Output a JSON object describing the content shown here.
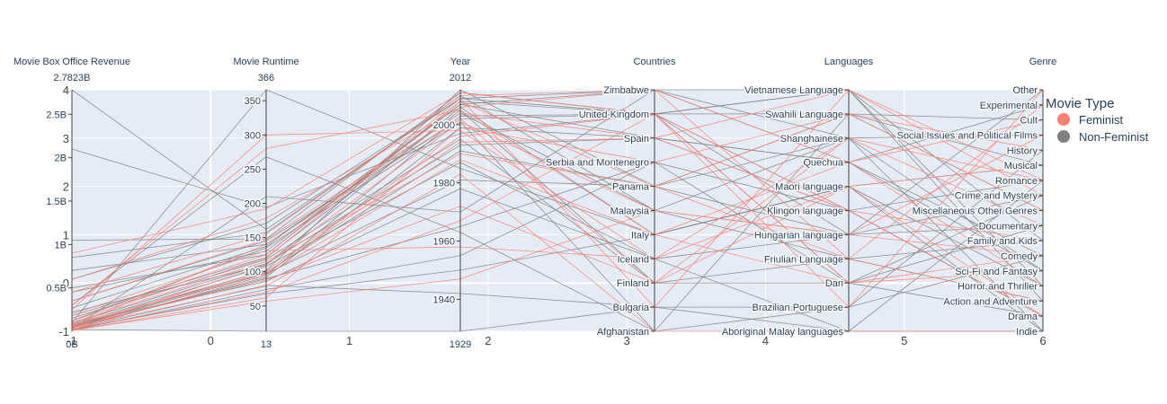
{
  "chart_data": {
    "type": "parcoords",
    "background_axis": {
      "x_ticks": [
        "-1",
        "0",
        "1",
        "2",
        "3",
        "4",
        "5",
        "6"
      ],
      "y_ticks": [
        "-1",
        "0",
        "1",
        "2",
        "3",
        "4"
      ],
      "xlim": [
        -1,
        6
      ],
      "ylim": [
        -1,
        4
      ]
    },
    "dimensions": [
      {
        "label": "Movie Box Office Revenue",
        "range_max": "2.7823B",
        "range_min": "0B",
        "ticks": [
          "0.5B",
          "1B",
          "1.5B",
          "2B",
          "2.5B"
        ],
        "tick_values": [
          0.5,
          1,
          1.5,
          2,
          2.5
        ],
        "min": 0,
        "max": 2.7823
      },
      {
        "label": "Movie Runtime",
        "range_max": "366",
        "range_min": "13",
        "ticks": [
          "50",
          "100",
          "150",
          "200",
          "250",
          "300",
          "350"
        ],
        "tick_values": [
          50,
          100,
          150,
          200,
          250,
          300,
          350
        ],
        "min": 13,
        "max": 366
      },
      {
        "label": "Year",
        "range_max": "2012",
        "range_min": "1929",
        "ticks": [
          "1940",
          "1960",
          "1980",
          "2000"
        ],
        "tick_values": [
          1940,
          1960,
          1980,
          2000
        ],
        "min": 1929,
        "max": 2012
      },
      {
        "label": "Countries",
        "range_max": "",
        "range_min": "",
        "categories": [
          "Afghanistan",
          "Bulgaria",
          "Finland",
          "Iceland",
          "Italy",
          "Malaysia",
          "Panama",
          "Serbia and Montenegro",
          "Spain",
          "United Kingdom",
          "Zimbabwe"
        ]
      },
      {
        "label": "Languages",
        "range_max": "",
        "range_min": "",
        "categories": [
          "Aboriginal Malay languages",
          "Brazilian Portuguese",
          "Dari",
          "Friulian Language",
          "Hungarian language",
          "Klingon language",
          "Maori language",
          "Quechua",
          "Shanghainese",
          "Swahili Language",
          "Vietnamese Language"
        ]
      },
      {
        "label": "Genre",
        "range_max": "",
        "range_min": "",
        "categories": [
          "Indie",
          "Drama",
          "Action and Adventure",
          "Horror and Thriller",
          "Sci-Fi and Fantasy",
          "Comedy",
          "Family and Kids",
          "Documentary",
          "Miscellaneous Other Genres",
          "Crime and Mystery",
          "Romance",
          "Musical",
          "History",
          "Social Issues and Political Films",
          "Cult",
          "Experimental",
          "Other"
        ]
      }
    ],
    "legend": {
      "title": "Movie Type",
      "items": [
        {
          "name": "Feminist",
          "color": "#fa8072"
        },
        {
          "name": "Non-Feminist",
          "color": "#808080"
        }
      ],
      "position": "right"
    },
    "colors": {
      "plot_bg": "#e5ecf6",
      "grid": "#ffffff",
      "axis": "#444444",
      "feminist": "#fa8072",
      "non_feminist": "#808080"
    },
    "sample_lines": {
      "feminist": [
        [
          0.08,
          101,
          1996,
          "United Kingdom",
          "Klingon language",
          "Drama"
        ],
        [
          0.35,
          147,
          2004,
          "Spain",
          "Vietnamese Language",
          "Romance"
        ],
        [
          0.02,
          95,
          1988,
          "Italy",
          "Dari",
          "Comedy"
        ],
        [
          0.12,
          120,
          2008,
          "Panama",
          "Friulian Language",
          "Experimental"
        ],
        [
          0.05,
          88,
          1972,
          "Finland",
          "Shanghainese",
          "Documentary"
        ],
        [
          0.6,
          178,
          2006,
          "Zimbabwe",
          "Quechua",
          "Cult"
        ],
        [
          0.01,
          62,
          1999,
          "Serbia and Montenegro",
          "Swahili Language",
          "History"
        ],
        [
          0.2,
          131,
          1958,
          "Iceland",
          "Maori language",
          "Musical"
        ],
        [
          0.03,
          110,
          2001,
          "Malaysia",
          "Hungarian language",
          "Social Issues and Political Films"
        ],
        [
          0.9,
          192,
          2011,
          "United Kingdom",
          "Brazilian Portuguese",
          "Other"
        ],
        [
          0.04,
          79,
          1983,
          "Afghanistan",
          "Aboriginal Malay languages",
          "Indie"
        ],
        [
          0.15,
          125,
          2009,
          "Bulgaria",
          "Vietnamese Language",
          "Crime and Mystery"
        ],
        [
          0.07,
          98,
          1994,
          "Spain",
          "Klingon language",
          "Family and Kids"
        ],
        [
          0.3,
          280,
          2005,
          "Italy",
          "Quechua",
          "Horror and Thriller"
        ],
        [
          0.02,
          70,
          1967,
          "United Kingdom",
          "Dari",
          "Sci-Fi and Fantasy"
        ],
        [
          0.45,
          155,
          2010,
          "Zimbabwe",
          "Friulian Language",
          "Action and Adventure"
        ],
        [
          0.1,
          115,
          1990,
          "Panama",
          "Swahili Language",
          "Miscellaneous Other Genres"
        ],
        [
          0.06,
          140,
          2002,
          "Finland",
          "Maori language",
          "Drama"
        ],
        [
          0.25,
          300,
          1998,
          "Iceland",
          "Shanghainese",
          "Romance"
        ],
        [
          0.01,
          57,
          1947,
          "Malaysia",
          "Hungarian language",
          "Comedy"
        ]
      ],
      "non_feminist": [
        [
          0.02,
          95,
          2003,
          "United Kingdom",
          "Dari",
          "Drama"
        ],
        [
          2.7823,
          162,
          2009,
          "Zimbabwe",
          "Vietnamese Language",
          "Action and Adventure"
        ],
        [
          2.1,
          194,
          1997,
          "United Kingdom",
          "Klingon language",
          "Romance"
        ],
        [
          0.45,
          130,
          2007,
          "Spain",
          "Quechua",
          "Comedy"
        ],
        [
          0.1,
          366,
          1985,
          "Italy",
          "Maori language",
          "Indie"
        ],
        [
          0.02,
          13,
          1929,
          "Bulgaria",
          "Aboriginal Malay languages",
          "Indie"
        ],
        [
          0.3,
          268,
          1963,
          "Afghanistan",
          "Brazilian Portuguese",
          "History"
        ],
        [
          0.05,
          102,
          2012,
          "Panama",
          "Swahili Language",
          "Cult"
        ],
        [
          0.7,
          140,
          2004,
          "Malaysia",
          "Shanghainese",
          "Sci-Fi and Fantasy"
        ],
        [
          0.08,
          86,
          1978,
          "Iceland",
          "Hungarian language",
          "Crime and Mystery"
        ],
        [
          0.15,
          118,
          1995,
          "Finland",
          "Friulian Language",
          "Family and Kids"
        ],
        [
          0.01,
          74,
          1955,
          "Serbia and Montenegro",
          "Dari",
          "Documentary"
        ],
        [
          1.05,
          148,
          2011,
          "United Kingdom",
          "Vietnamese Language",
          "Horror and Thriller"
        ],
        [
          0.04,
          92,
          1999,
          "Spain",
          "Klingon language",
          "Drama"
        ],
        [
          0.22,
          110,
          2006,
          "Italy",
          "Maori language",
          "Musical"
        ],
        [
          0.03,
          210,
          1970,
          "Zimbabwe",
          "Quechua",
          "Experimental"
        ],
        [
          0.5,
          125,
          2008,
          "United Kingdom",
          "Hungarian language",
          "Other"
        ],
        [
          0.06,
          99,
          1991,
          "Panama",
          "Shanghainese",
          "Social Issues and Political Films"
        ],
        [
          0.12,
          135,
          2001,
          "Afghanistan",
          "Swahili Language",
          "Miscellaneous Other Genres"
        ],
        [
          0.02,
          80,
          1942,
          "Bulgaria",
          "Brazilian Portuguese",
          "Comedy"
        ],
        [
          0.85,
          157,
          2010,
          "Malaysia",
          "Friulian Language",
          "Action and Adventure"
        ],
        [
          0.07,
          108,
          1987,
          "Iceland",
          "Aboriginal Malay languages",
          "Romance"
        ],
        [
          0.18,
          121,
          2005,
          "Finland",
          "Dari",
          "Crime and Mystery"
        ],
        [
          0.04,
          90,
          1965,
          "Serbia and Montenegro",
          "Klingon language",
          "Drama"
        ],
        [
          0.35,
          145,
          2002,
          "United Kingdom",
          "Vietnamese Language",
          "Family and Kids"
        ],
        [
          0.09,
          112,
          1993,
          "Spain",
          "Quechua",
          "Sci-Fi and Fantasy"
        ],
        [
          0.02,
          68,
          1950,
          "Italy",
          "Maori language",
          "Horror and Thriller"
        ],
        [
          0.27,
          137,
          2007,
          "Zimbabwe",
          "Shanghainese",
          "Indie"
        ],
        [
          0.05,
          97,
          1981,
          "Panama",
          "Hungarian language",
          "Documentary"
        ],
        [
          0.6,
          171,
          2009,
          "United Kingdom",
          "Swahili Language",
          "Musical"
        ]
      ]
    }
  }
}
